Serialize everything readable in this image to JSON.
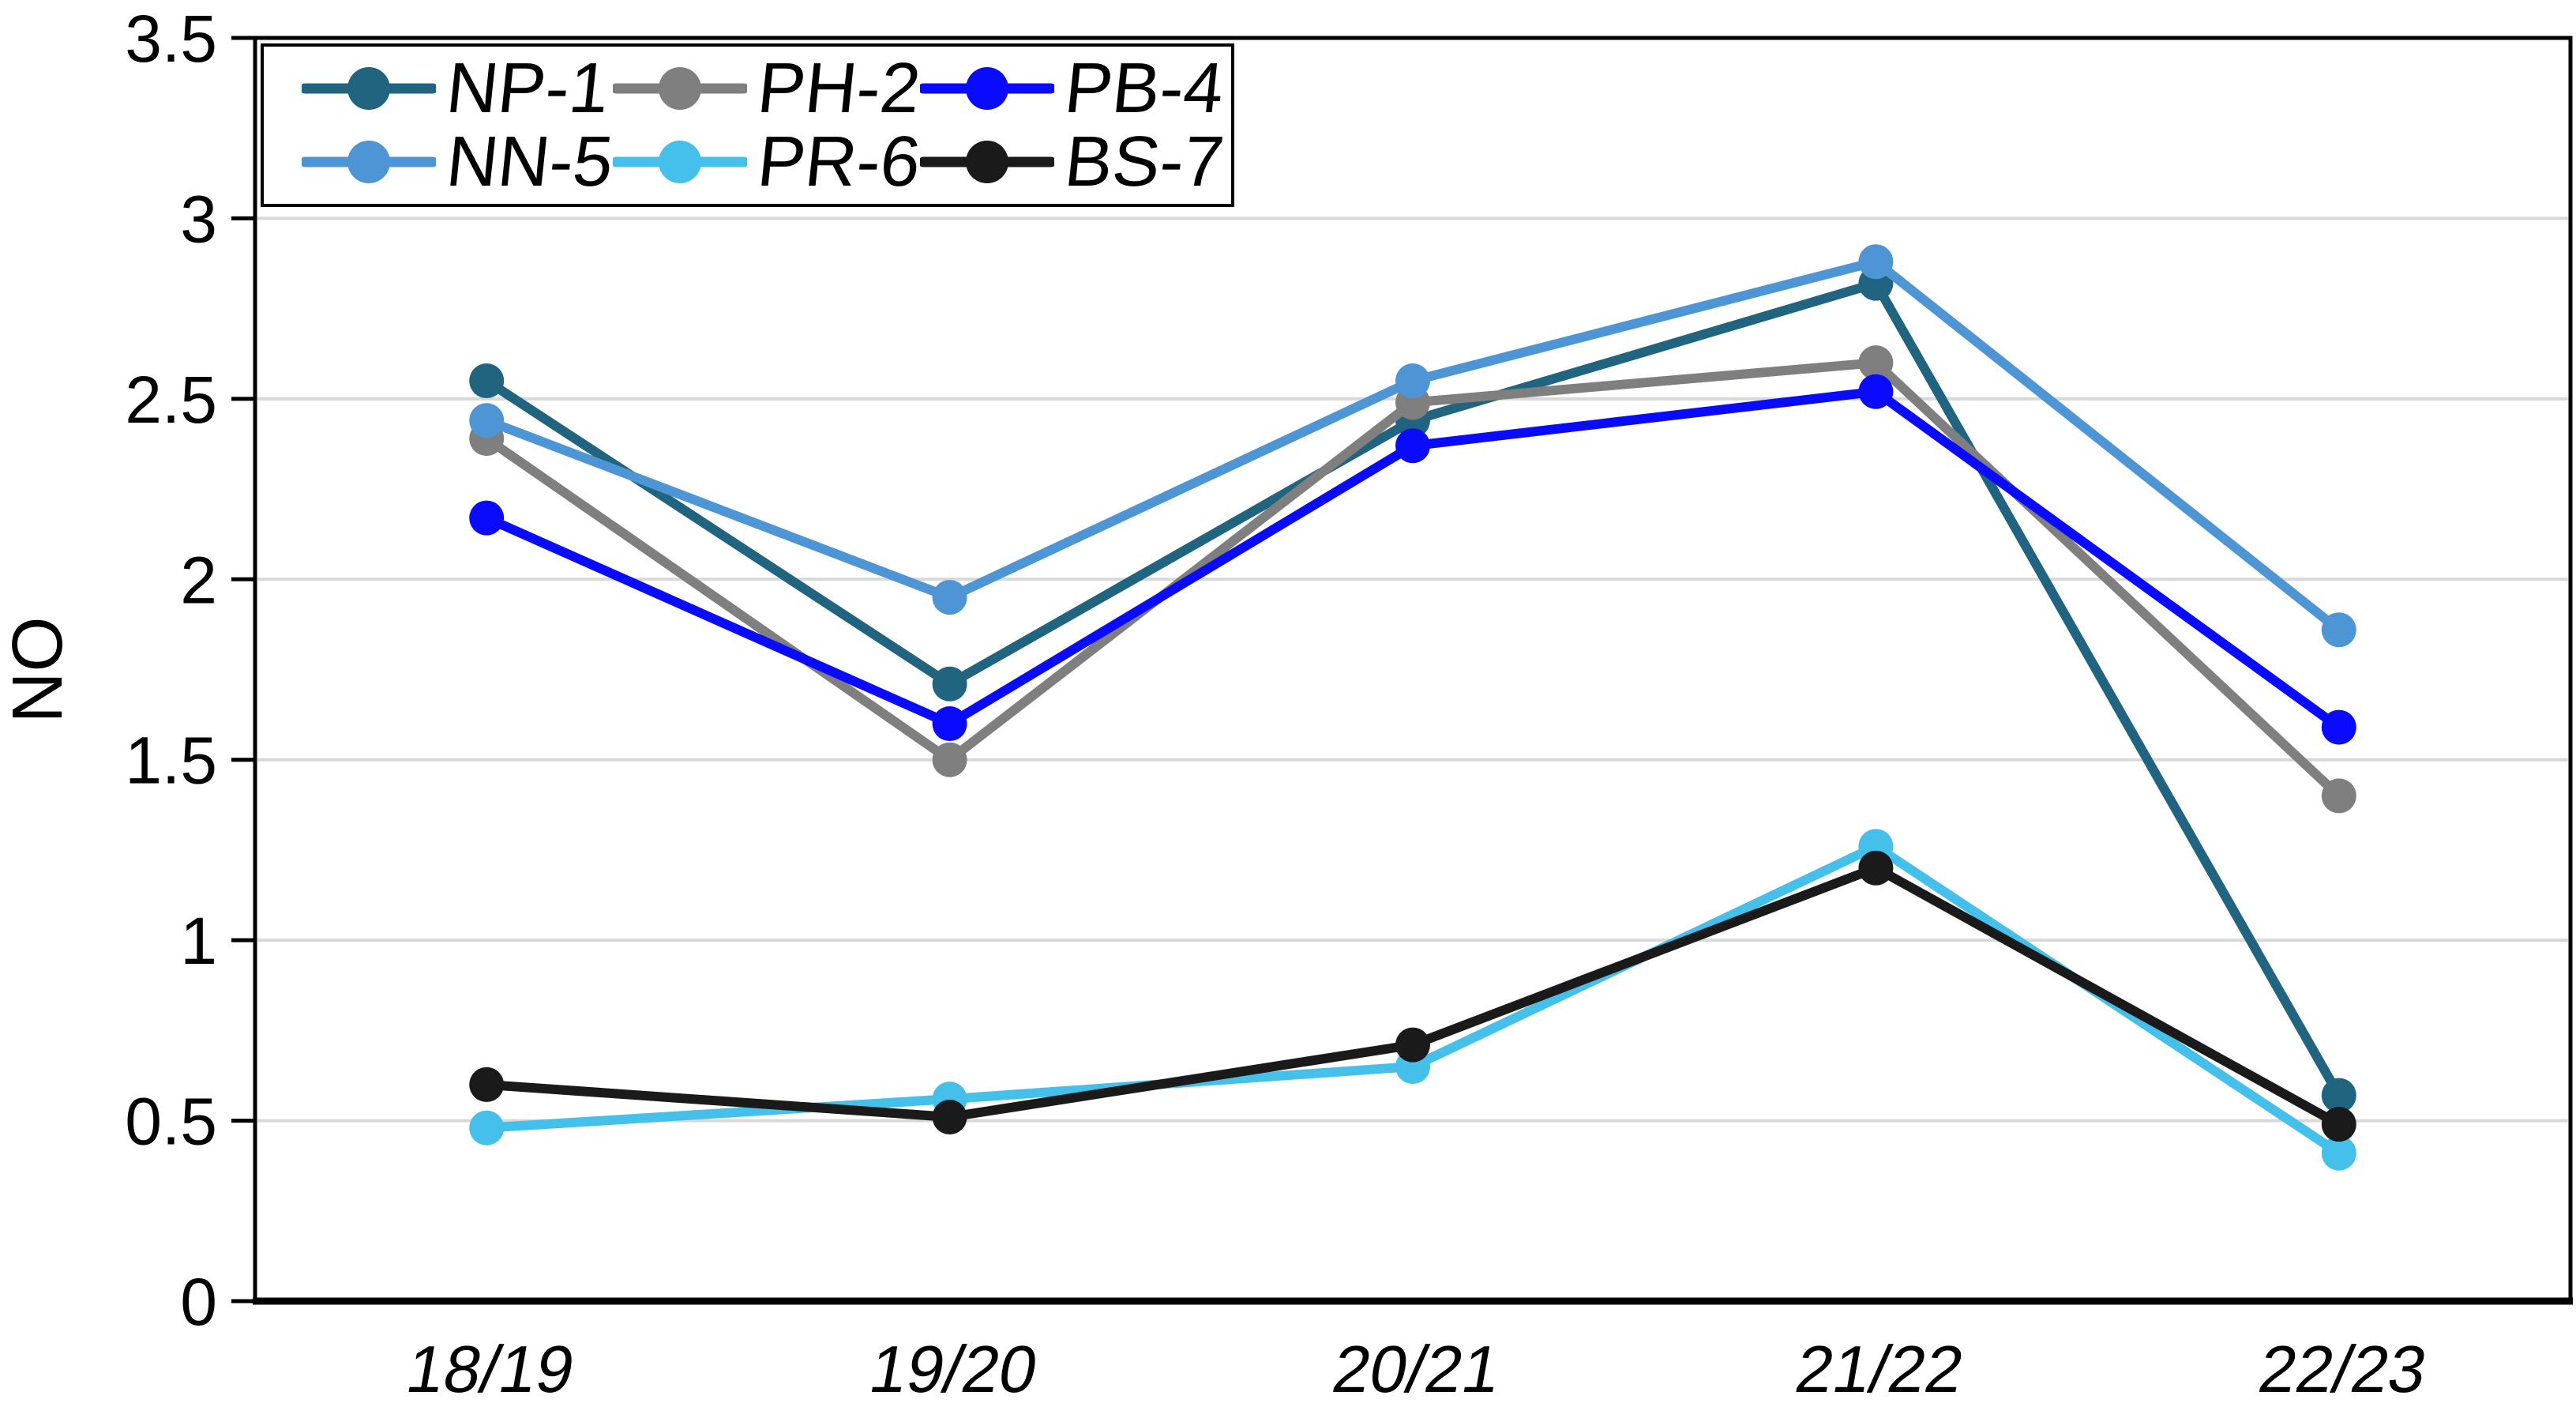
{
  "chart_data": {
    "type": "line",
    "title": "",
    "xlabel": "",
    "ylabel": "NO",
    "ylim": [
      0,
      3.5
    ],
    "ytick_step": 0.5,
    "yticks": [
      "0",
      "0.5",
      "1",
      "1.5",
      "2",
      "2.5",
      "3",
      "3.5"
    ],
    "categories": [
      "18/19",
      "19/20",
      "20/21",
      "21/22",
      "22/23"
    ],
    "series": [
      {
        "name": "NP-1",
        "color": "#20647F",
        "values": [
          2.55,
          1.71,
          2.44,
          2.82,
          0.57
        ]
      },
      {
        "name": "PH-2",
        "color": "#7F7F7F",
        "values": [
          2.39,
          1.5,
          2.49,
          2.6,
          1.4
        ]
      },
      {
        "name": "PB-4",
        "color": "#0A0AFF",
        "values": [
          2.17,
          1.6,
          2.37,
          2.52,
          1.59
        ]
      },
      {
        "name": "NN-5",
        "color": "#4E95D5",
        "values": [
          2.44,
          1.95,
          2.55,
          2.88,
          1.86
        ]
      },
      {
        "name": "PR-6",
        "color": "#45C0EA",
        "values": [
          0.48,
          0.56,
          0.65,
          1.26,
          0.41
        ]
      },
      {
        "name": "BS-7",
        "color": "#1A1A1A",
        "values": [
          0.6,
          0.51,
          0.71,
          1.2,
          0.49
        ]
      }
    ],
    "legend": {
      "position": "top-left",
      "columns": 3,
      "rows": 2
    },
    "grid": {
      "show": true,
      "color": "#D9D9D9"
    },
    "axis_color": "#000000",
    "plot_background": "#FFFFFF"
  }
}
